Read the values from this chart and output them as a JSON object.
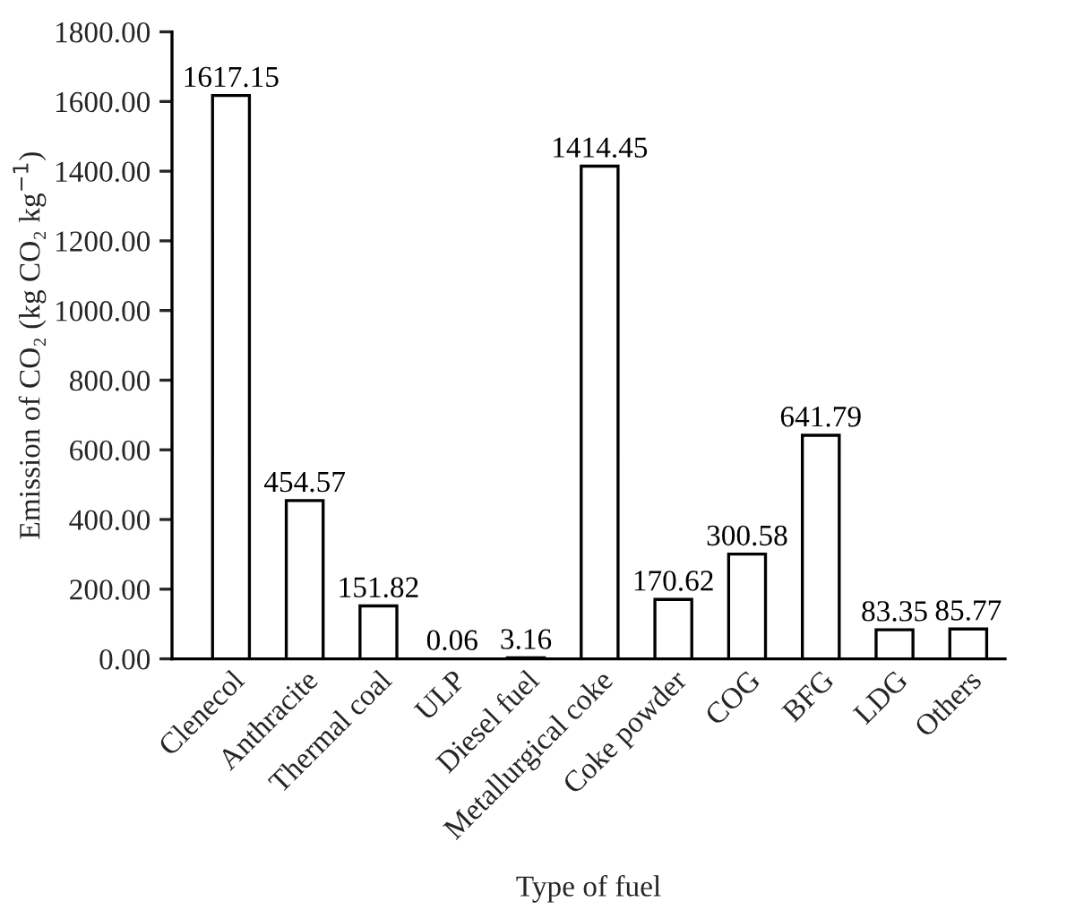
{
  "chart_data": {
    "type": "bar",
    "xlabel": "Type of fuel",
    "ylabel": "Emission of CO₂ (kg CO₂ kg$^{−1}$)",
    "categories": [
      "Clenecol",
      "Anthracite",
      "Thermal coal",
      "ULP",
      "Diesel fuel",
      "Metallurgical coke",
      "Coke powder",
      "COG",
      "BFG",
      "LDG",
      "Others"
    ],
    "values": [
      1617.15,
      454.57,
      151.82,
      0.06,
      3.16,
      1414.45,
      170.62,
      300.58,
      641.79,
      83.35,
      85.77
    ],
    "color": "#ffffff",
    "ylim": [
      0,
      1800
    ],
    "yticks": [
      {
        "value": 0,
        "label": "0.00"
      },
      {
        "value": 200,
        "label": "200.00"
      },
      {
        "value": 400,
        "label": "400.00"
      },
      {
        "value": 600,
        "label": "600.00"
      },
      {
        "value": 800,
        "label": "800.00"
      },
      {
        "value": 1000,
        "label": "1000.00"
      },
      {
        "value": 1200,
        "label": "1200.00"
      },
      {
        "value": 1400,
        "label": "1400.00"
      },
      {
        "value": 1600,
        "label": "1600.00"
      },
      {
        "value": 1800,
        "label": "1800.00"
      }
    ],
    "data_labels": true,
    "grid": false,
    "legend": false
  }
}
